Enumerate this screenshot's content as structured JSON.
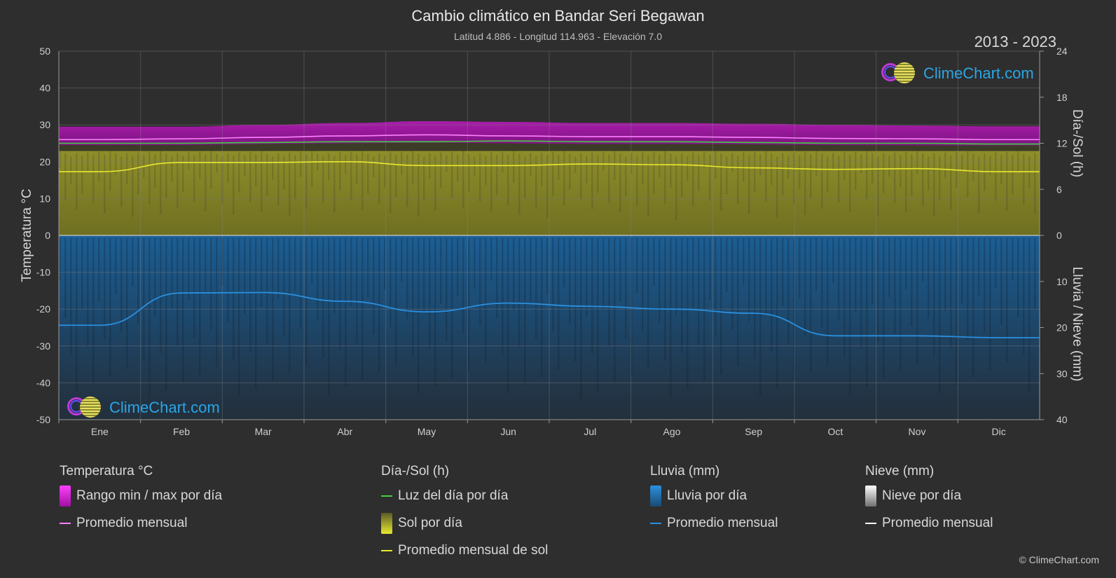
{
  "header": {
    "title": "Cambio climático en Bandar Seri Begawan",
    "subtitle": "Latitud 4.886 - Longitud 114.963 - Elevación 7.0",
    "period": "2013 - 2023"
  },
  "branding": {
    "logo_text": "ClimeChart.com",
    "copyright": "© ClimeChart.com"
  },
  "colors": {
    "temp_range": "#d020d0",
    "temp_avg": "#ff80ff",
    "daylight": "#40d040",
    "sunshine": "#a0a030",
    "sun_avg": "#e8e830",
    "rain": "#1f6fb0",
    "rain_avg": "#2a90e0",
    "snow": "#ffffff",
    "logo_text": "#2aa6e6"
  },
  "chart_data": {
    "type": "area",
    "categories": [
      "Ene",
      "Feb",
      "Mar",
      "Abr",
      "May",
      "Jun",
      "Jul",
      "Ago",
      "Sep",
      "Oct",
      "Nov",
      "Dic"
    ],
    "axes": {
      "left": {
        "label": "Temperatura °C",
        "range": [
          -50,
          50
        ],
        "ticks": [
          50,
          40,
          30,
          20,
          10,
          0,
          -10,
          -20,
          -30,
          -40,
          -50
        ]
      },
      "right_top": {
        "label": "Día-/Sol (h)",
        "range": [
          0,
          24
        ],
        "ticks": [
          24,
          18,
          12,
          6,
          0
        ]
      },
      "right_bottom": {
        "label": "Lluvia / Nieve (mm)",
        "range": [
          0,
          40
        ],
        "ticks": [
          10,
          20,
          30,
          40
        ]
      }
    },
    "grid": true,
    "series": [
      {
        "name": "Rango min / max por día",
        "axis": "left",
        "min": [
          24.5,
          24.5,
          24.8,
          25.0,
          25.2,
          25.0,
          24.8,
          24.8,
          24.7,
          24.5,
          24.4,
          24.4
        ],
        "max": [
          29.5,
          29.5,
          30.0,
          30.5,
          31.0,
          30.8,
          30.5,
          30.5,
          30.3,
          30.0,
          29.8,
          29.6
        ]
      },
      {
        "name": "Promedio mensual",
        "axis": "left",
        "values": [
          26.0,
          26.2,
          26.6,
          27.0,
          27.3,
          27.0,
          26.8,
          26.8,
          26.6,
          26.3,
          26.2,
          26.0
        ]
      },
      {
        "name": "Luz del día por día",
        "axis": "right_top",
        "values": [
          12.0,
          12.0,
          12.1,
          12.2,
          12.2,
          12.3,
          12.2,
          12.2,
          12.1,
          12.0,
          12.0,
          11.9
        ]
      },
      {
        "name": "Sol por día",
        "axis": "right_top",
        "values": [
          11.0,
          11.0,
          11.0,
          11.0,
          11.0,
          11.0,
          11.0,
          11.0,
          11.0,
          11.0,
          11.0,
          11.0
        ]
      },
      {
        "name": "Promedio mensual de sol",
        "axis": "right_top",
        "values": [
          8.3,
          9.5,
          9.5,
          9.6,
          9.1,
          9.1,
          9.3,
          9.2,
          8.8,
          8.6,
          8.7,
          8.3
        ]
      },
      {
        "name": "Lluvia por día",
        "axis": "right_bottom",
        "values": [
          40,
          40,
          40,
          40,
          40,
          40,
          40,
          40,
          40,
          40,
          40,
          40
        ]
      },
      {
        "name": "Promedio mensual",
        "axis": "right_bottom",
        "values": [
          19.5,
          12.5,
          12.4,
          14.3,
          16.6,
          14.7,
          15.4,
          16.0,
          16.9,
          21.8,
          21.8,
          22.2
        ]
      }
    ]
  },
  "legend": {
    "groups": [
      {
        "title": "Temperatura °C",
        "items": [
          "Rango min / max por día",
          "Promedio mensual"
        ]
      },
      {
        "title": "Día-/Sol (h)",
        "items": [
          "Luz del día por día",
          "Sol por día",
          "Promedio mensual de sol"
        ]
      },
      {
        "title": "Lluvia (mm)",
        "items": [
          "Lluvia por día",
          "Promedio mensual"
        ]
      },
      {
        "title": "Nieve (mm)",
        "items": [
          "Nieve por día",
          "Promedio mensual"
        ]
      }
    ]
  }
}
